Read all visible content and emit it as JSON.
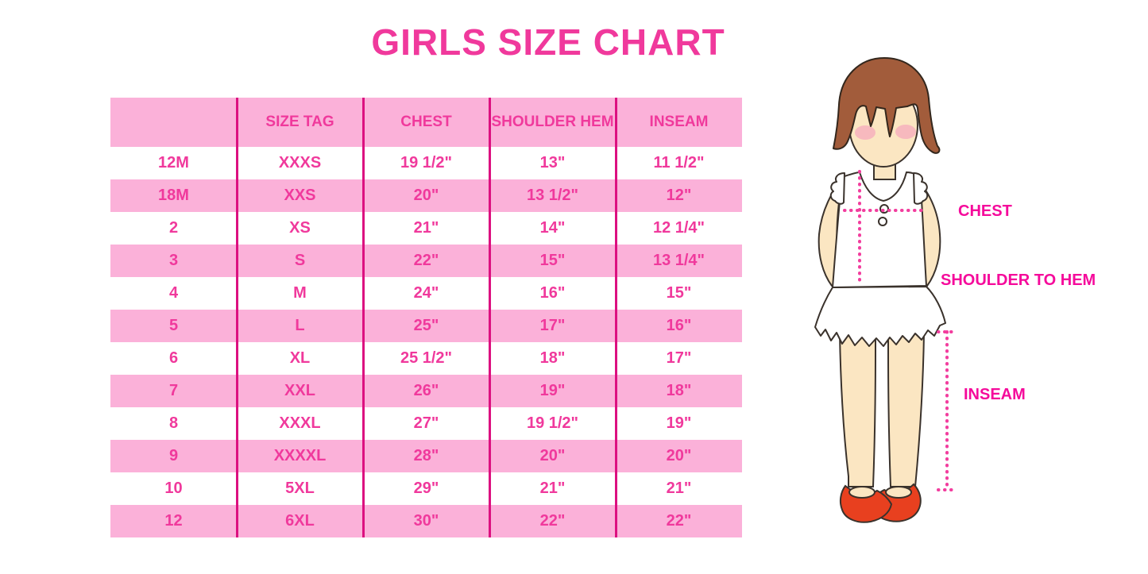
{
  "title": "GIRLS SIZE CHART",
  "table": {
    "col_headers": [
      "",
      "SIZE TAG",
      "CHEST",
      "SHOULDER HEM",
      "INSEAM"
    ],
    "rows": [
      [
        "12M",
        "XXXS",
        "19 1/2\"",
        "13\"",
        "11 1/2\""
      ],
      [
        "18M",
        "XXS",
        "20\"",
        "13 1/2\"",
        "12\""
      ],
      [
        "2",
        "XS",
        "21\"",
        "14\"",
        "12 1/4\""
      ],
      [
        "3",
        "S",
        "22\"",
        "15\"",
        "13 1/4\""
      ],
      [
        "4",
        "M",
        "24\"",
        "16\"",
        "15\""
      ],
      [
        "5",
        "L",
        "25\"",
        "17\"",
        "16\""
      ],
      [
        "6",
        "XL",
        "25 1/2\"",
        "18\"",
        "17\""
      ],
      [
        "7",
        "XXL",
        "26\"",
        "19\"",
        "18\""
      ],
      [
        "8",
        "XXXL",
        "27\"",
        "19 1/2\"",
        "19\""
      ],
      [
        "9",
        "XXXXL",
        "28\"",
        "20\"",
        "20\""
      ],
      [
        "10",
        "5XL",
        "29\"",
        "21\"",
        "21\""
      ],
      [
        "12",
        "6XL",
        "30\"",
        "22\"",
        "22\""
      ]
    ]
  },
  "figure": {
    "chest_label": "CHEST",
    "shoulder_label": "SHOULDER TO HEM",
    "inseam_label": "INSEAM"
  },
  "colors": {
    "title_pink": "#F0399C",
    "row_band_pink": "#FBB1D9",
    "grid_line_magenta": "#DC1080",
    "measure_label_pink": "#F50A9B",
    "dotted_line_pink": "#F23D9E",
    "hair_brown": "#A25C3B",
    "skin": "#FBE6C2",
    "blush": "#F6AEBD",
    "shoe_red": "#E8401F"
  }
}
